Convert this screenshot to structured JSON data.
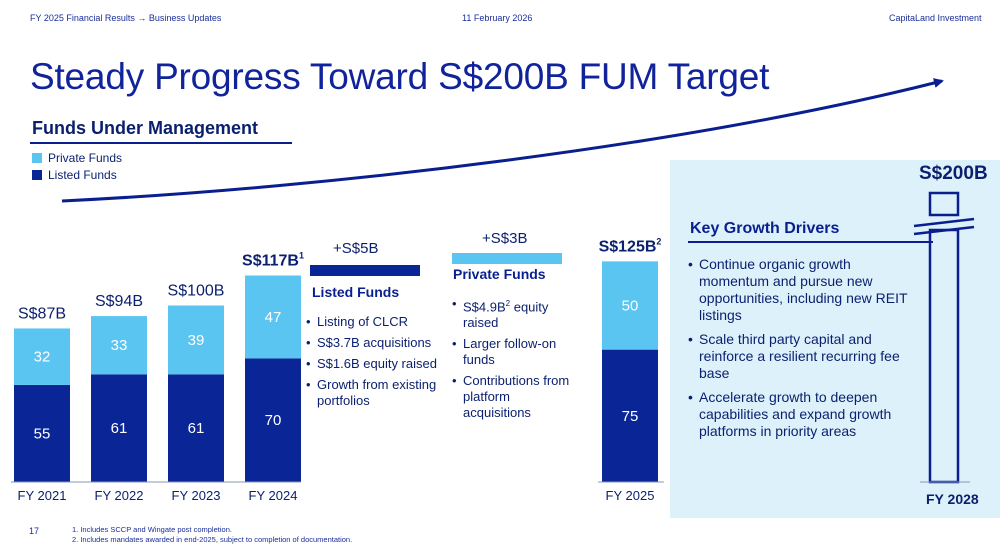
{
  "header": {
    "breadcrumb": "FY 2025 Financial Results → Business Updates",
    "date": "11 February 2026",
    "company": "CapitaLand Investment"
  },
  "title": "Steady Progress Toward S$200B FUM Target",
  "subtitle": "Funds Under Management",
  "legend": [
    {
      "label": "Private Funds",
      "color": "#5bc5f2"
    },
    {
      "label": "Listed Funds",
      "color": "#0a2596"
    }
  ],
  "colors": {
    "private": "#5bc5f2",
    "listed": "#0a2596",
    "navy": "#0a1f8f",
    "panel": "#ddf1fb"
  },
  "chart_data": {
    "type": "bar",
    "stacked": true,
    "categories": [
      "FY 2021",
      "FY 2022",
      "FY 2023",
      "FY 2024",
      "FY 2025"
    ],
    "series": [
      {
        "name": "Listed Funds",
        "values": [
          55,
          61,
          61,
          70,
          75
        ]
      },
      {
        "name": "Private Funds",
        "values": [
          32,
          33,
          39,
          47,
          50
        ]
      }
    ],
    "totals": [
      "S$87B",
      "S$94B",
      "S$100B",
      "S$117B",
      "S$125B"
    ],
    "total_superscripts": [
      "",
      "",
      "",
      "1",
      "2"
    ],
    "target": {
      "category": "FY 2028",
      "label": "S$200B",
      "value": 200
    }
  },
  "listed_section": {
    "delta": "+S$5B",
    "title": "Listed Funds",
    "items": [
      "Listing of CLCR",
      "S$3.7B acquisitions",
      "S$1.6B equity raised",
      "Growth from existing portfolios"
    ]
  },
  "private_section": {
    "delta": "+S$3B",
    "title": "Private Funds",
    "item1_pre": "S$4.9B",
    "item1_sup": "2",
    "item1_post": " equity raised",
    "items": [
      "Larger follow-on funds",
      "Contributions from platform acquisitions"
    ]
  },
  "drivers": {
    "title": "Key Growth Drivers",
    "items": [
      "Continue organic growth momentum and pursue new opportunities, including new REIT listings",
      "Scale third party capital and reinforce a resilient recurring fee base",
      "Accelerate growth to deepen capabilities and expand growth platforms in priority areas"
    ]
  },
  "page_number": "17",
  "footnotes": [
    "1.  Includes SCCP and Wingate post completion.",
    "2.  Includes mandates awarded in end-2025, subject to completion of documentation."
  ]
}
